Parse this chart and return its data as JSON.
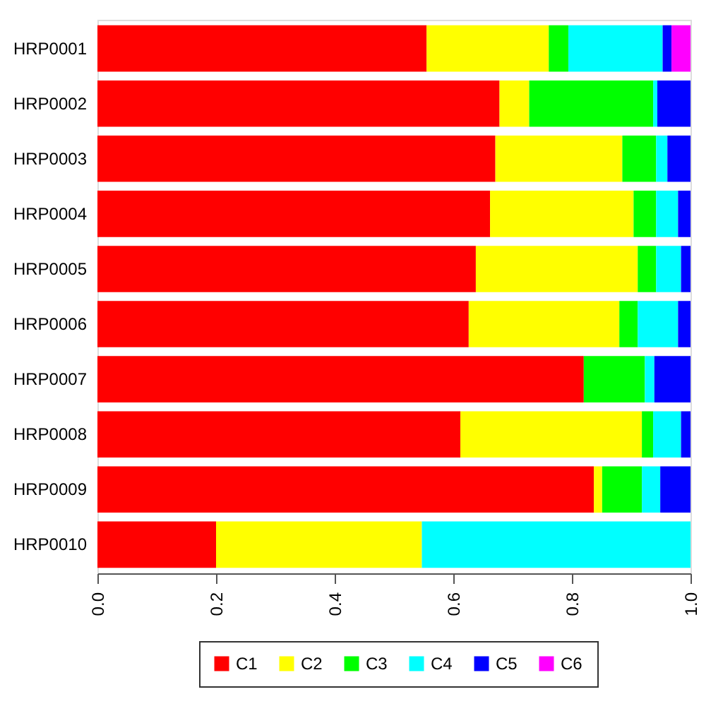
{
  "chart_data": {
    "type": "bar",
    "orientation": "horizontal",
    "stacked": true,
    "categories": [
      "HRP0001",
      "HRP0002",
      "HRP0003",
      "HRP0004",
      "HRP0005",
      "HRP0006",
      "HRP0007",
      "HRP0008",
      "HRP0009",
      "HRP0010"
    ],
    "series": [
      {
        "name": "C1",
        "color": "#ff0000",
        "values": [
          0.555,
          0.678,
          0.671,
          0.662,
          0.638,
          0.626,
          0.82,
          0.612,
          0.837,
          0.2
        ]
      },
      {
        "name": "C2",
        "color": "#ffff00",
        "values": [
          0.206,
          0.05,
          0.214,
          0.242,
          0.273,
          0.254,
          null,
          0.306,
          0.014,
          0.347
        ]
      },
      {
        "name": "C3",
        "color": "#00ff00",
        "values": [
          0.033,
          0.209,
          0.057,
          0.038,
          0.031,
          0.031,
          0.103,
          0.019,
          0.067,
          null
        ]
      },
      {
        "name": "C4",
        "color": "#00ffff",
        "values": [
          0.159,
          0.007,
          0.019,
          0.037,
          0.042,
          0.068,
          0.016,
          0.047,
          0.031,
          0.453
        ]
      },
      {
        "name": "C5",
        "color": "#0000ff",
        "values": [
          0.015,
          0.056,
          0.039,
          0.021,
          0.016,
          0.021,
          0.061,
          0.016,
          0.051,
          null
        ]
      },
      {
        "name": "C6",
        "color": "#ff00ff",
        "values": [
          0.032,
          null,
          null,
          null,
          null,
          null,
          null,
          null,
          null,
          null
        ]
      }
    ],
    "xlim": [
      0,
      1
    ],
    "xticks": [
      {
        "value": 0,
        "label": "0.0"
      },
      {
        "value": 0.2,
        "label": "0.2"
      },
      {
        "value": 0.4,
        "label": "0.4"
      },
      {
        "value": 0.6,
        "label": "0.6"
      },
      {
        "value": 0.8,
        "label": "0.8"
      },
      {
        "value": 1,
        "label": "1.0"
      }
    ],
    "grid": false,
    "legend": "bottom"
  }
}
